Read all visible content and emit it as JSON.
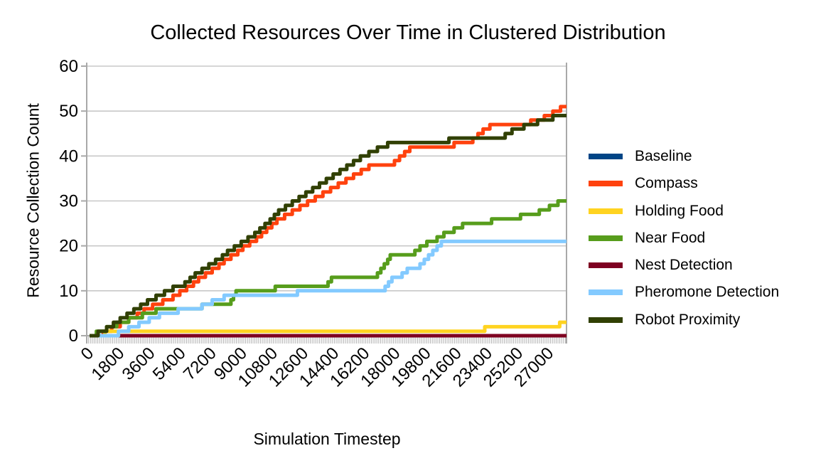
{
  "chart_data": {
    "type": "line",
    "title": "Collected Resources Over Time in Clustered Distribution",
    "xlabel": "Simulation Timestep",
    "ylabel": "Resource Collection Count",
    "x_ticks": [
      0,
      1800,
      3600,
      5400,
      7200,
      9000,
      10800,
      12600,
      14400,
      16200,
      18000,
      19800,
      21600,
      23400,
      25200,
      27000
    ],
    "y_ticks": [
      0,
      10,
      20,
      30,
      40,
      50,
      60
    ],
    "x_max": 28000,
    "y_max": 60,
    "ylim": [
      0,
      60
    ],
    "grid": "horizontal",
    "legend_position": "right",
    "line_style": "step-after",
    "axis_color": "#a9a9a9",
    "gridline_color": "#c8c8c8",
    "series": [
      {
        "name": "Baseline",
        "color": "#004586",
        "points": [
          [
            0,
            0
          ],
          [
            28000,
            0
          ]
        ]
      },
      {
        "name": "Compass",
        "color": "#FF420E",
        "points": [
          [
            0,
            0
          ],
          [
            800,
            1
          ],
          [
            1300,
            2
          ],
          [
            1800,
            3
          ],
          [
            2300,
            4
          ],
          [
            2800,
            5
          ],
          [
            3200,
            6
          ],
          [
            3700,
            7
          ],
          [
            4300,
            8
          ],
          [
            4900,
            9
          ],
          [
            5300,
            10
          ],
          [
            5700,
            11
          ],
          [
            6100,
            12
          ],
          [
            6400,
            13
          ],
          [
            6800,
            14
          ],
          [
            7200,
            15
          ],
          [
            7600,
            16
          ],
          [
            7900,
            17
          ],
          [
            8300,
            18
          ],
          [
            8700,
            19
          ],
          [
            9000,
            20
          ],
          [
            9400,
            21
          ],
          [
            9800,
            22
          ],
          [
            10100,
            23
          ],
          [
            10400,
            24
          ],
          [
            10700,
            25
          ],
          [
            11000,
            26
          ],
          [
            11450,
            27
          ],
          [
            11900,
            28
          ],
          [
            12350,
            29
          ],
          [
            12800,
            30
          ],
          [
            13250,
            31
          ],
          [
            13700,
            32
          ],
          [
            14150,
            33
          ],
          [
            14600,
            34
          ],
          [
            15050,
            35
          ],
          [
            15500,
            36
          ],
          [
            15950,
            37
          ],
          [
            16400,
            38
          ],
          [
            17900,
            39
          ],
          [
            18200,
            40
          ],
          [
            18500,
            41
          ],
          [
            18800,
            42
          ],
          [
            21400,
            43
          ],
          [
            22500,
            44
          ],
          [
            22800,
            45
          ],
          [
            23100,
            46
          ],
          [
            23500,
            47
          ],
          [
            25900,
            48
          ],
          [
            26700,
            49
          ],
          [
            27200,
            50
          ],
          [
            27650,
            51
          ],
          [
            28000,
            51
          ]
        ]
      },
      {
        "name": "Holding Food",
        "color": "#FFD320",
        "points": [
          [
            0,
            0
          ],
          [
            900,
            1
          ],
          [
            23200,
            2
          ],
          [
            27600,
            3
          ],
          [
            28000,
            3
          ]
        ]
      },
      {
        "name": "Near Food",
        "color": "#579D1C",
        "points": [
          [
            0,
            0
          ],
          [
            400,
            1
          ],
          [
            1000,
            2
          ],
          [
            1600,
            3
          ],
          [
            2300,
            4
          ],
          [
            3100,
            5
          ],
          [
            3900,
            6
          ],
          [
            6600,
            7
          ],
          [
            8300,
            8
          ],
          [
            8450,
            9
          ],
          [
            8600,
            10
          ],
          [
            10900,
            11
          ],
          [
            14000,
            12
          ],
          [
            14200,
            13
          ],
          [
            16900,
            14
          ],
          [
            17100,
            15
          ],
          [
            17300,
            16
          ],
          [
            17500,
            17
          ],
          [
            17650,
            18
          ],
          [
            19100,
            19
          ],
          [
            19400,
            20
          ],
          [
            19800,
            21
          ],
          [
            20400,
            22
          ],
          [
            20800,
            23
          ],
          [
            21400,
            24
          ],
          [
            21900,
            25
          ],
          [
            23600,
            26
          ],
          [
            25300,
            27
          ],
          [
            26400,
            28
          ],
          [
            27000,
            29
          ],
          [
            27500,
            30
          ],
          [
            28000,
            30
          ]
        ]
      },
      {
        "name": "Nest Detection",
        "color": "#7E0021",
        "points": [
          [
            0,
            0
          ],
          [
            28000,
            0
          ]
        ]
      },
      {
        "name": "Pheromone Detection",
        "color": "#83CAFF",
        "points": [
          [
            0,
            0
          ],
          [
            1700,
            1
          ],
          [
            2300,
            2
          ],
          [
            2900,
            3
          ],
          [
            3500,
            4
          ],
          [
            4100,
            5
          ],
          [
            5200,
            6
          ],
          [
            6600,
            7
          ],
          [
            7200,
            8
          ],
          [
            7900,
            9
          ],
          [
            12200,
            10
          ],
          [
            17350,
            11
          ],
          [
            17550,
            12
          ],
          [
            17750,
            13
          ],
          [
            18350,
            14
          ],
          [
            18650,
            15
          ],
          [
            19400,
            16
          ],
          [
            19650,
            17
          ],
          [
            19900,
            18
          ],
          [
            20150,
            19
          ],
          [
            20400,
            20
          ],
          [
            20650,
            21
          ],
          [
            28000,
            21
          ]
        ]
      },
      {
        "name": "Robot Proximity",
        "color": "#314004",
        "points": [
          [
            0,
            0
          ],
          [
            500,
            1
          ],
          [
            1000,
            2
          ],
          [
            1400,
            3
          ],
          [
            1800,
            4
          ],
          [
            2200,
            5
          ],
          [
            2600,
            6
          ],
          [
            3000,
            7
          ],
          [
            3400,
            8
          ],
          [
            3900,
            9
          ],
          [
            4400,
            10
          ],
          [
            4900,
            11
          ],
          [
            5600,
            12
          ],
          [
            5900,
            13
          ],
          [
            6200,
            14
          ],
          [
            6600,
            15
          ],
          [
            7000,
            16
          ],
          [
            7400,
            17
          ],
          [
            7800,
            18
          ],
          [
            8100,
            19
          ],
          [
            8500,
            20
          ],
          [
            8900,
            21
          ],
          [
            9300,
            22
          ],
          [
            9700,
            23
          ],
          [
            10000,
            24
          ],
          [
            10300,
            25
          ],
          [
            10600,
            26
          ],
          [
            10850,
            27
          ],
          [
            11100,
            28
          ],
          [
            11500,
            29
          ],
          [
            11900,
            30
          ],
          [
            12300,
            31
          ],
          [
            12700,
            32
          ],
          [
            13100,
            33
          ],
          [
            13500,
            34
          ],
          [
            13900,
            35
          ],
          [
            14300,
            36
          ],
          [
            14700,
            37
          ],
          [
            15100,
            38
          ],
          [
            15500,
            39
          ],
          [
            15900,
            40
          ],
          [
            16400,
            41
          ],
          [
            16900,
            42
          ],
          [
            17500,
            43
          ],
          [
            21100,
            44
          ],
          [
            24400,
            45
          ],
          [
            24800,
            46
          ],
          [
            25500,
            47
          ],
          [
            26300,
            48
          ],
          [
            27200,
            49
          ],
          [
            28000,
            49
          ]
        ]
      }
    ]
  }
}
